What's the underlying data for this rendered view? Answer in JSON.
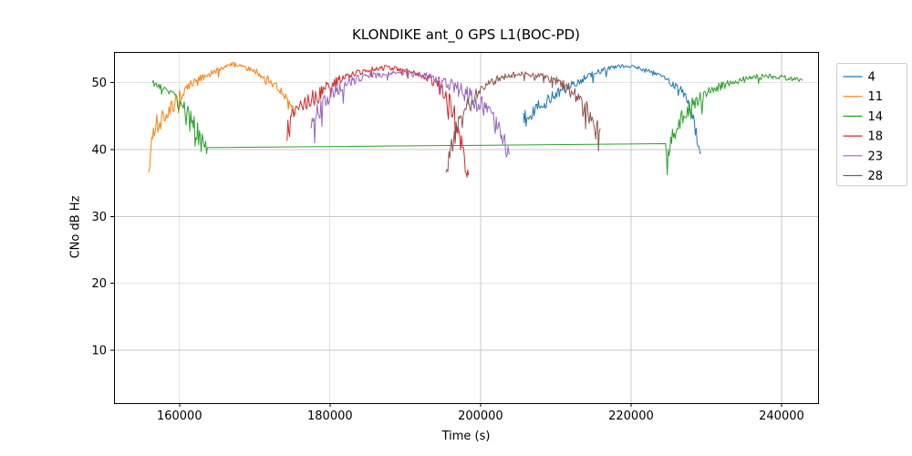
{
  "chart_data": {
    "type": "line",
    "title": "KLONDIKE ant_0 GPS L1(BOC-PD)",
    "xlabel": "Time (s)",
    "ylabel": "CNo dB Hz",
    "xlim": [
      151300,
      244850
    ],
    "ylim": [
      2.1,
      54.6
    ],
    "xticks": [
      160000,
      180000,
      200000,
      220000,
      240000
    ],
    "yticks": [
      10,
      20,
      30,
      40,
      50
    ],
    "grid": true,
    "grid_color": "#c8c8c8",
    "legend_position": "upper right outside",
    "series": [
      {
        "name": "4",
        "color": "#1f77b4",
        "points": [
          [
            205700,
            44.5,
            1.6
          ],
          [
            207000,
            46.0,
            1.2
          ],
          [
            208500,
            47.0,
            1.2
          ],
          [
            210000,
            48.2,
            0.9
          ],
          [
            212000,
            49.6,
            0.7
          ],
          [
            214000,
            50.8,
            0.5
          ],
          [
            216000,
            51.8,
            0.4
          ],
          [
            218000,
            52.4,
            0.3
          ],
          [
            219500,
            52.5,
            0.3
          ],
          [
            221000,
            52.2,
            0.3
          ],
          [
            223000,
            51.4,
            0.4
          ],
          [
            225000,
            50.3,
            0.5
          ],
          [
            226500,
            49.0,
            0.7
          ],
          [
            227500,
            47.2,
            1.0
          ],
          [
            228300,
            44.5,
            1.5
          ],
          [
            228900,
            41.5,
            1.3
          ],
          [
            229300,
            39.5,
            0.8
          ]
        ]
      },
      {
        "name": "11",
        "color": "#ff7f0e",
        "points": [
          [
            155900,
            36.5,
            0.5
          ],
          [
            156300,
            41.0,
            1.5
          ],
          [
            157000,
            43.5,
            1.8
          ],
          [
            158000,
            45.0,
            1.5
          ],
          [
            159000,
            46.5,
            1.3
          ],
          [
            160000,
            48.0,
            1.0
          ],
          [
            161500,
            49.8,
            0.6
          ],
          [
            163000,
            50.8,
            0.5
          ],
          [
            164500,
            51.6,
            0.4
          ],
          [
            166000,
            52.4,
            0.35
          ],
          [
            167200,
            52.9,
            0.3
          ],
          [
            168500,
            52.5,
            0.35
          ],
          [
            170000,
            51.8,
            0.4
          ],
          [
            171000,
            51.2,
            0.5
          ],
          [
            172000,
            50.3,
            0.6
          ],
          [
            173000,
            49.3,
            0.6
          ],
          [
            174000,
            48.2,
            0.7
          ],
          [
            174800,
            46.8,
            0.8
          ],
          [
            175400,
            45.6,
            0.8
          ]
        ]
      },
      {
        "name": "14",
        "color": "#2ca02c",
        "points": [
          [
            156400,
            50.0,
            0.4
          ],
          [
            157500,
            49.4,
            0.5
          ],
          [
            158500,
            48.6,
            0.7
          ],
          [
            159500,
            47.6,
            0.9
          ],
          [
            160500,
            46.4,
            1.1
          ],
          [
            161500,
            44.6,
            1.4
          ],
          [
            162300,
            42.8,
            1.6
          ],
          [
            163000,
            41.0,
            1.8
          ],
          [
            163600,
            39.8,
            1.2
          ],
          [
            163700,
            40.3,
            0
          ],
          [
            224600,
            40.9,
            0
          ],
          [
            224700,
            39.0,
            1.8
          ],
          [
            225500,
            42.5,
            1.8
          ],
          [
            226500,
            44.5,
            1.5
          ],
          [
            227500,
            46.0,
            1.3
          ],
          [
            228500,
            47.0,
            1.2
          ],
          [
            230000,
            48.3,
            0.9
          ],
          [
            232000,
            49.5,
            0.6
          ],
          [
            234000,
            50.2,
            0.5
          ],
          [
            236000,
            50.8,
            0.4
          ],
          [
            238000,
            51.0,
            0.35
          ],
          [
            240000,
            50.8,
            0.35
          ],
          [
            241500,
            50.6,
            0.35
          ],
          [
            242800,
            50.3,
            0.4
          ]
        ]
      },
      {
        "name": "18",
        "color": "#d62728",
        "points": [
          [
            174300,
            43.8,
            0.9
          ],
          [
            175200,
            45.8,
            0.9
          ],
          [
            176200,
            46.8,
            1.0
          ],
          [
            177200,
            47.3,
            1.2
          ],
          [
            178200,
            47.8,
            1.5
          ],
          [
            179000,
            48.8,
            1.2
          ],
          [
            180000,
            49.8,
            0.8
          ],
          [
            181500,
            50.6,
            0.6
          ],
          [
            183000,
            51.3,
            0.5
          ],
          [
            185000,
            51.9,
            0.4
          ],
          [
            187000,
            52.3,
            0.35
          ],
          [
            188500,
            52.2,
            0.35
          ],
          [
            190000,
            51.8,
            0.4
          ],
          [
            191500,
            51.4,
            0.45
          ],
          [
            193000,
            50.7,
            0.6
          ],
          [
            194300,
            49.8,
            0.8
          ],
          [
            195400,
            48.2,
            1.1
          ],
          [
            196300,
            46.0,
            1.5
          ],
          [
            197000,
            43.5,
            1.6
          ],
          [
            197600,
            40.0,
            1.4
          ],
          [
            198100,
            37.0,
            1.0
          ],
          [
            198400,
            36.2,
            0.6
          ]
        ]
      },
      {
        "name": "23",
        "color": "#9467bd",
        "points": [
          [
            177400,
            43.5,
            1.2
          ],
          [
            178300,
            45.5,
            1.5
          ],
          [
            179300,
            47.0,
            1.6
          ],
          [
            180500,
            48.6,
            1.2
          ],
          [
            182000,
            49.8,
            0.8
          ],
          [
            184000,
            50.7,
            0.6
          ],
          [
            186000,
            51.1,
            0.5
          ],
          [
            188000,
            51.4,
            0.4
          ],
          [
            190000,
            51.4,
            0.4
          ],
          [
            192000,
            51.2,
            0.5
          ],
          [
            193500,
            50.8,
            0.6
          ],
          [
            195000,
            50.2,
            0.8
          ],
          [
            196500,
            49.4,
            1.0
          ],
          [
            198000,
            48.4,
            1.3
          ],
          [
            199500,
            47.2,
            1.5
          ],
          [
            201000,
            45.8,
            1.4
          ],
          [
            202200,
            43.8,
            1.3
          ],
          [
            203200,
            41.2,
            1.2
          ],
          [
            203900,
            39.3,
            0.8
          ]
        ]
      },
      {
        "name": "28",
        "color": "#8c564b",
        "points": [
          [
            195400,
            36.2,
            0.6
          ],
          [
            195800,
            38.5,
            1.5
          ],
          [
            196400,
            41.5,
            1.8
          ],
          [
            197200,
            44.5,
            1.6
          ],
          [
            198200,
            46.8,
            1.2
          ],
          [
            199300,
            48.3,
            0.9
          ],
          [
            200500,
            49.5,
            0.7
          ],
          [
            202000,
            50.5,
            0.5
          ],
          [
            203500,
            51.0,
            0.45
          ],
          [
            205000,
            51.3,
            0.4
          ],
          [
            207000,
            51.2,
            0.4
          ],
          [
            208500,
            50.9,
            0.5
          ],
          [
            210000,
            50.3,
            0.7
          ],
          [
            211500,
            49.3,
            0.9
          ],
          [
            213000,
            47.6,
            1.1
          ],
          [
            214200,
            45.8,
            1.3
          ],
          [
            215200,
            44.0,
            1.4
          ],
          [
            215900,
            43.2,
            1.0
          ]
        ]
      }
    ]
  }
}
